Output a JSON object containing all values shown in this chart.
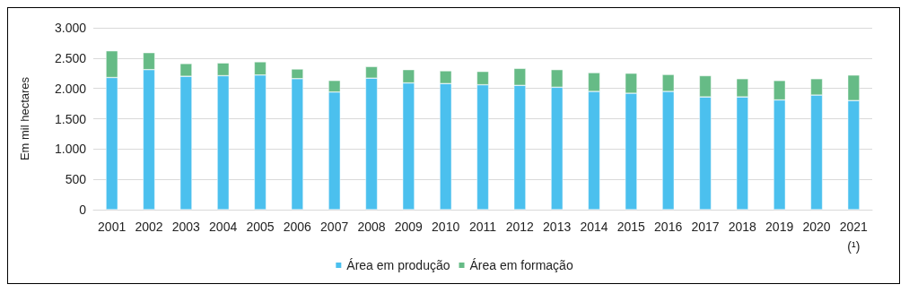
{
  "chart_data": {
    "type": "bar",
    "stacked": true,
    "ylabel": "Em mil hectares",
    "categories": [
      "2001",
      "2002",
      "2003",
      "2004",
      "2005",
      "2006",
      "2007",
      "2008",
      "2009",
      "2010",
      "2011",
      "2012",
      "2013",
      "2014",
      "2015",
      "2016",
      "2017",
      "2018",
      "2019",
      "2020",
      "2021\n(¹)"
    ],
    "series": [
      {
        "name": "Área em produção",
        "color": "#4bc0ee",
        "values": [
          2180,
          2310,
          2200,
          2210,
          2220,
          2160,
          1940,
          2170,
          2090,
          2080,
          2060,
          2050,
          2020,
          1950,
          1920,
          1950,
          1860,
          1860,
          1810,
          1890,
          1800
        ]
      },
      {
        "name": "Área em formação",
        "color": "#66bb86",
        "values": [
          440,
          280,
          210,
          210,
          220,
          160,
          190,
          190,
          220,
          210,
          220,
          280,
          290,
          310,
          330,
          280,
          350,
          300,
          320,
          270,
          420
        ]
      }
    ],
    "ylim": [
      0,
      3000
    ],
    "yticks": [
      {
        "value": 0,
        "label": "0"
      },
      {
        "value": 500,
        "label": "500"
      },
      {
        "value": 1000,
        "label": "1.000"
      },
      {
        "value": 1500,
        "label": "1.500"
      },
      {
        "value": 2000,
        "label": "2.000"
      },
      {
        "value": 2500,
        "label": "2.500"
      },
      {
        "value": 3000,
        "label": "3.000"
      }
    ],
    "grid": "y",
    "legend": "bottom"
  }
}
